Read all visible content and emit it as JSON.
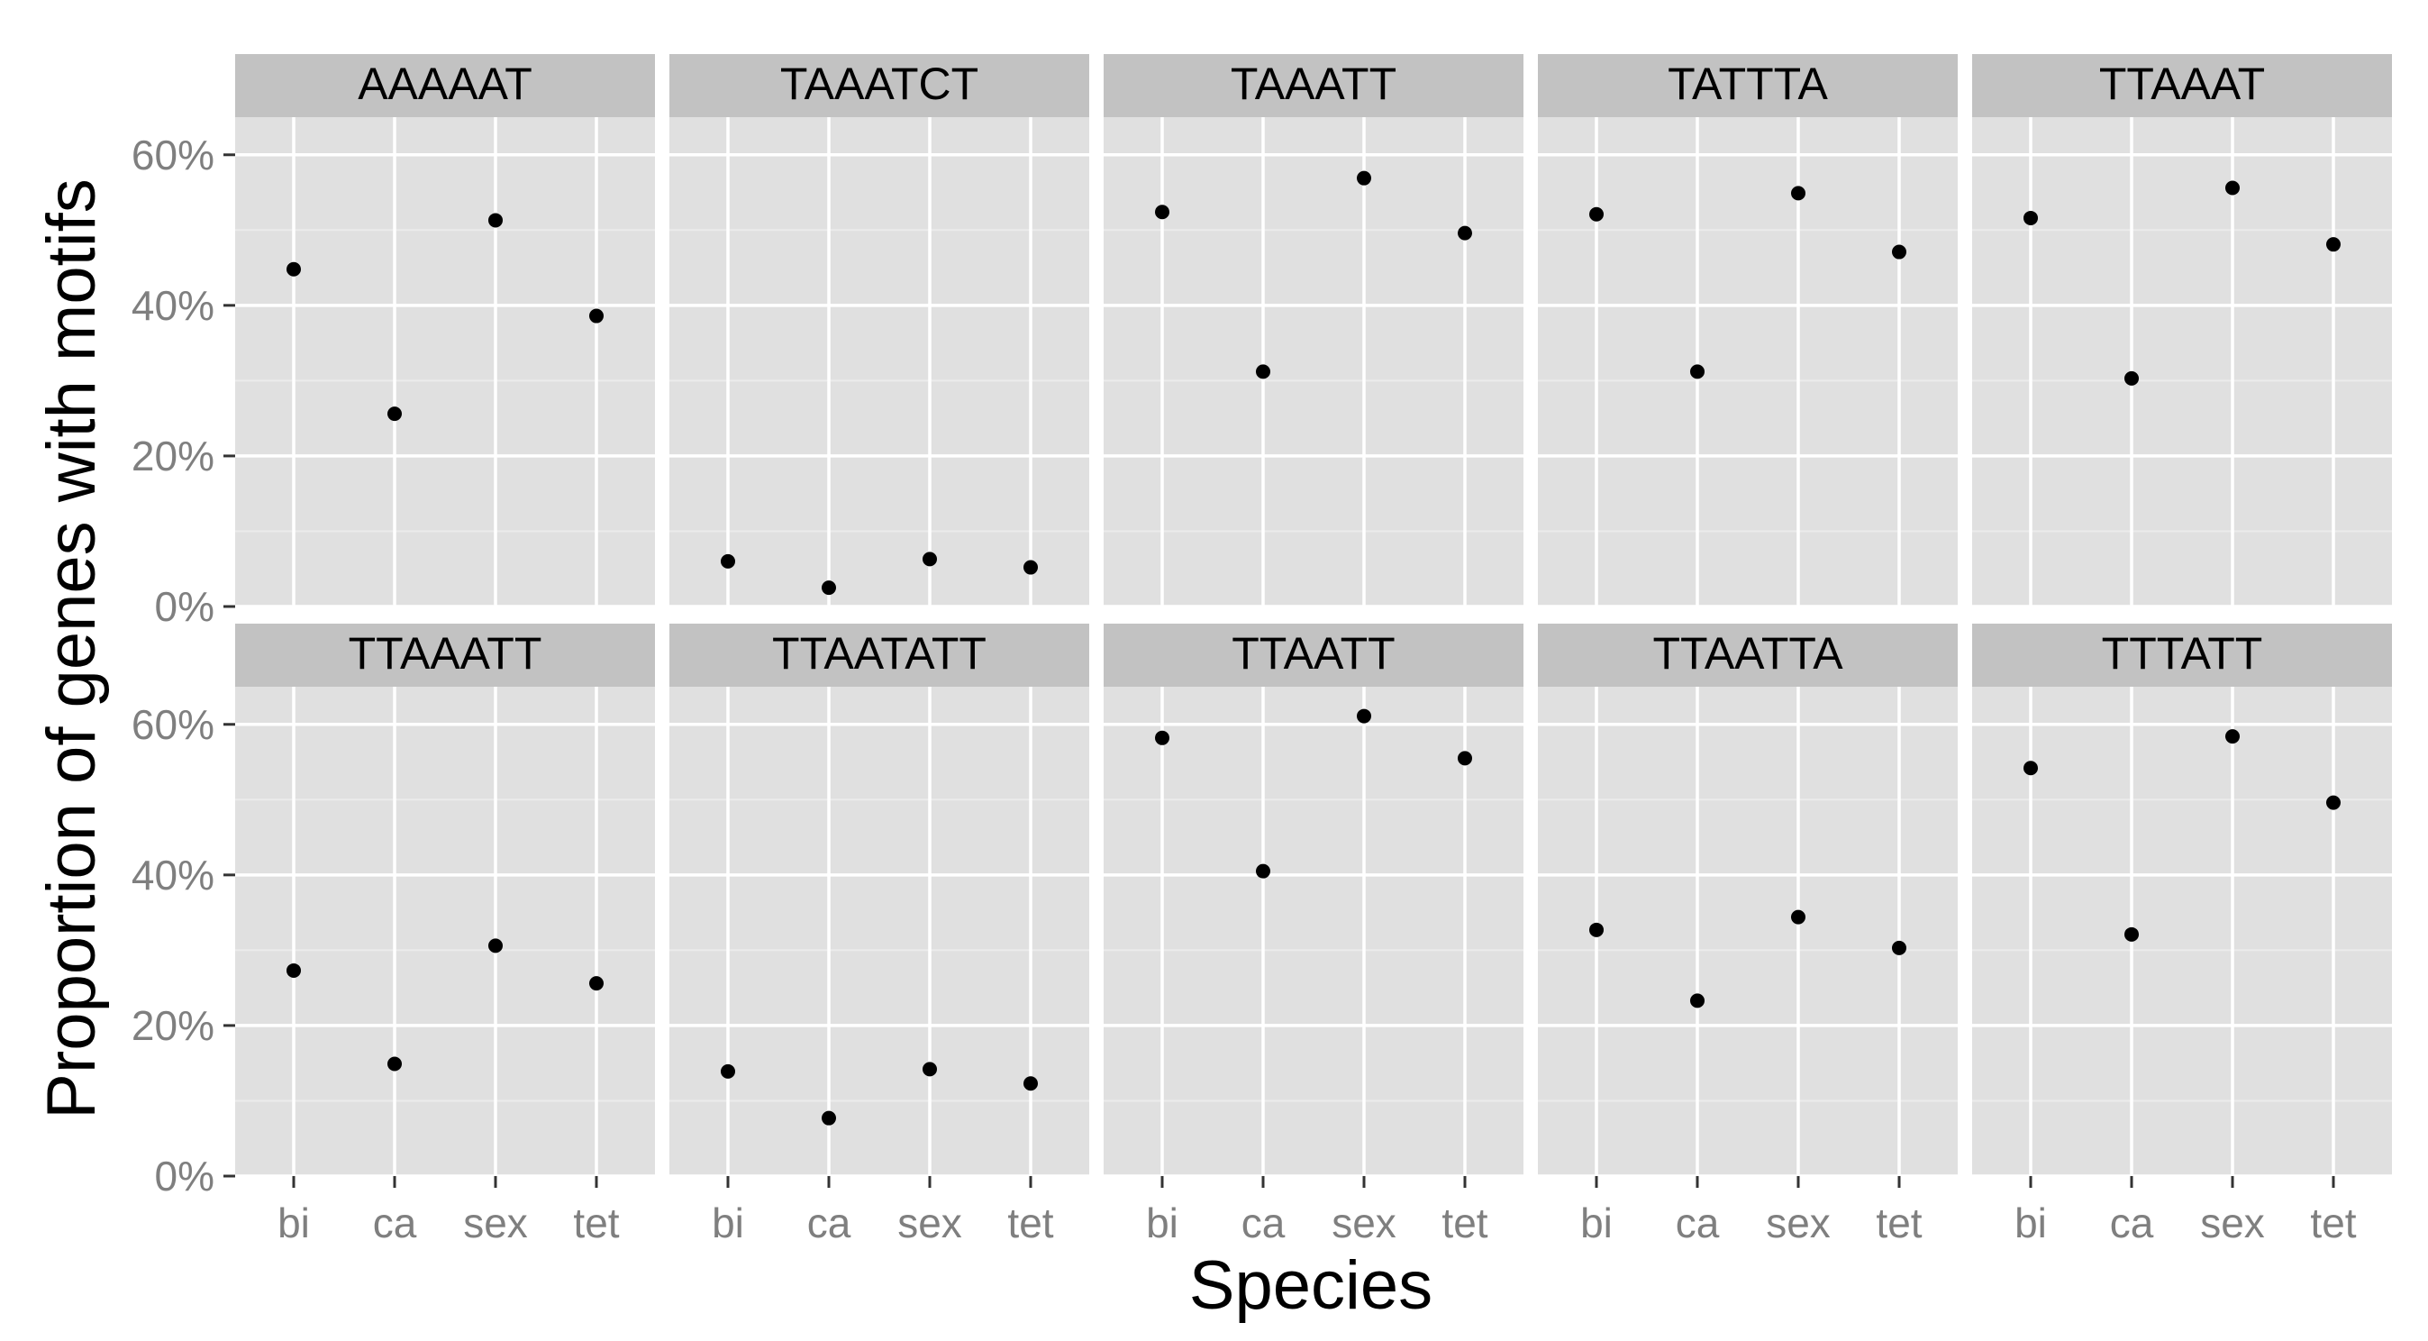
{
  "chart_data": {
    "type": "scatter",
    "xlabel": "Species",
    "ylabel": "Proportion of genes with motifs",
    "categories": [
      "bi",
      "ca",
      "sex",
      "tet"
    ],
    "y_ticks": [
      "0%",
      "20%",
      "40%",
      "60%"
    ],
    "ylim": [
      0,
      0.65
    ],
    "grid": true,
    "layout": "2 rows x 5 columns facets",
    "colors": {
      "panel": "#e0e0e0",
      "strip": "#c2c2c2",
      "grid": "#ffffff",
      "point": "#000000",
      "tick_text": "#7f7f7f"
    },
    "panels": [
      {
        "motif": "AAAAAT",
        "values": [
          0.448,
          0.256,
          0.513,
          0.386
        ]
      },
      {
        "motif": "TAAATCT",
        "values": [
          0.06,
          0.025,
          0.063,
          0.052
        ]
      },
      {
        "motif": "TAAATT",
        "values": [
          0.524,
          0.312,
          0.569,
          0.496
        ]
      },
      {
        "motif": "TATTTA",
        "values": [
          0.521,
          0.312,
          0.549,
          0.471
        ]
      },
      {
        "motif": "TTAAAT",
        "values": [
          0.516,
          0.303,
          0.556,
          0.481
        ]
      },
      {
        "motif": "TTAAATT",
        "values": [
          0.273,
          0.149,
          0.306,
          0.256
        ]
      },
      {
        "motif": "TTAATATT",
        "values": [
          0.139,
          0.077,
          0.142,
          0.123
        ]
      },
      {
        "motif": "TTAATT",
        "values": [
          0.582,
          0.405,
          0.611,
          0.555
        ]
      },
      {
        "motif": "TTAATTA",
        "values": [
          0.327,
          0.233,
          0.344,
          0.303
        ]
      },
      {
        "motif": "TTTATT",
        "values": [
          0.542,
          0.321,
          0.584,
          0.496
        ]
      }
    ]
  }
}
